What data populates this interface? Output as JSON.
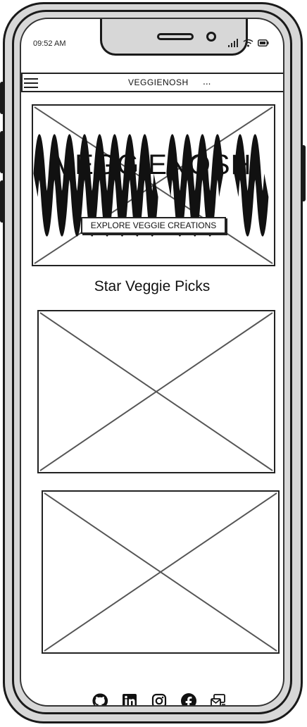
{
  "status_bar": {
    "time": "09:52 AM",
    "icons": [
      "signal-icon",
      "wifi-icon",
      "battery-icon"
    ]
  },
  "navbar": {
    "menu_icon": "hamburger-menu-icon",
    "title": "VEGGIENOSH",
    "more": "..."
  },
  "hero": {
    "title": "VEGGIENOSH",
    "cta_label": "EXPLORE VEGGIE CREATIONS"
  },
  "picks": {
    "title": "Star Veggie Picks"
  },
  "footer": {
    "icons": [
      "github-icon",
      "linkedin-icon",
      "instagram-icon",
      "facebook-icon",
      "contact-icon"
    ]
  },
  "colors": {
    "ink": "#1a1a1a",
    "frame_gray": "#d7d7d7",
    "screen_white": "#ffffff"
  }
}
